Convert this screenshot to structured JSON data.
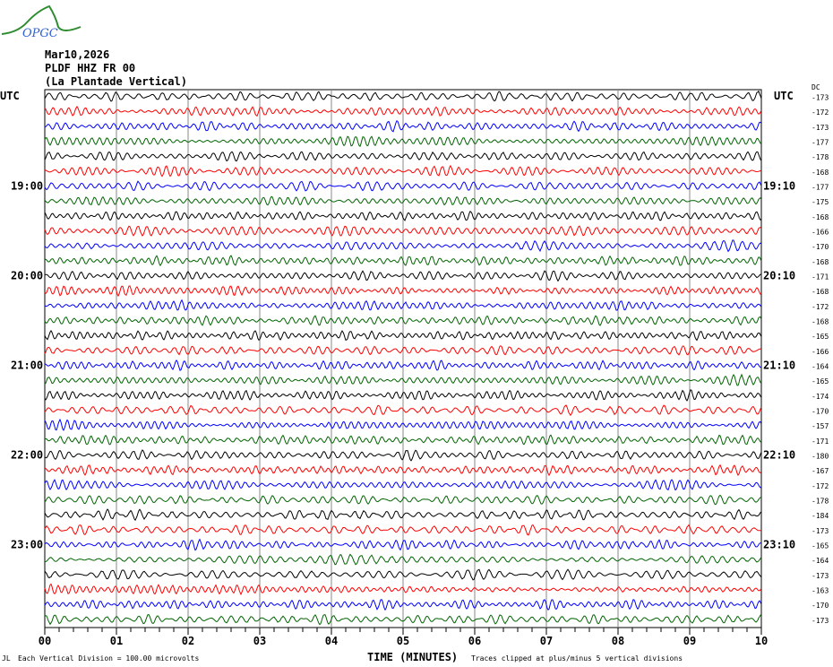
{
  "logo": {
    "text": "OPGC",
    "colors": {
      "curve": "#2e8b2e",
      "text": "#3060d0"
    }
  },
  "header": {
    "date": "Mar10,2026",
    "station": "PLDF HHZ FR 00",
    "location": "(La Plantade Vertical)"
  },
  "left_axis_title": "UTC",
  "right_axis_title": "UTC",
  "dc_title": "DC",
  "footer": {
    "scale": "Each Vertical Division =  100.00 microvolts",
    "xlabel": "TIME (MINUTES)",
    "clip": "Traces clipped at plus/minus 5 vertical divisions",
    "corner": "JL"
  },
  "chart_data": {
    "type": "line",
    "xlabel": "TIME (MINUTES)",
    "xlim": [
      0,
      10
    ],
    "x_ticks": [
      "00",
      "01",
      "02",
      "03",
      "04",
      "05",
      "06",
      "07",
      "08",
      "09",
      "10"
    ],
    "grid": true,
    "trace_colors": [
      "#000000",
      "#ff0000",
      "#0000ff",
      "#006400"
    ],
    "left_time_labels": [
      {
        "row": 6,
        "label": "19:00"
      },
      {
        "row": 12,
        "label": "20:00"
      },
      {
        "row": 18,
        "label": "21:00"
      },
      {
        "row": 24,
        "label": "22:00"
      },
      {
        "row": 30,
        "label": "23:00"
      }
    ],
    "right_time_labels": [
      {
        "row": 6,
        "label": "19:10"
      },
      {
        "row": 12,
        "label": "20:10"
      },
      {
        "row": 18,
        "label": "21:10"
      },
      {
        "row": 24,
        "label": "22:10"
      },
      {
        "row": 30,
        "label": "23:10"
      }
    ],
    "dc_offsets": [
      -173,
      -172,
      -173,
      -177,
      -178,
      -168,
      -177,
      -175,
      -168,
      -166,
      -170,
      -168,
      -171,
      -168,
      -172,
      -168,
      -165,
      -166,
      -164,
      -165,
      -174,
      -170,
      -157,
      -171,
      -180,
      -167,
      -172,
      -178,
      -184,
      -173,
      -165,
      -164,
      -173,
      -163,
      -170,
      -173
    ]
  }
}
